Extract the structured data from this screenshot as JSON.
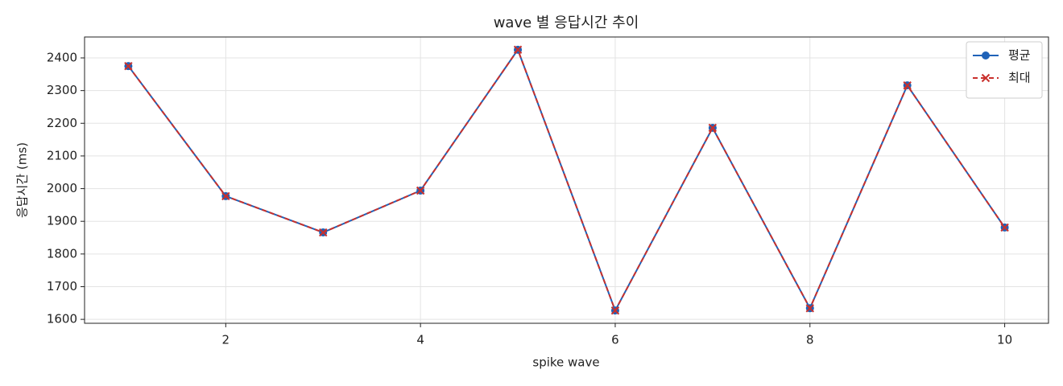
{
  "chart_data": {
    "type": "line",
    "title": "wave 별 응답시간 추이",
    "x_label": "spike wave",
    "y_label": "응답시간 (ms)",
    "x": [
      1,
      2,
      3,
      4,
      5,
      6,
      7,
      8,
      9,
      10
    ],
    "series": [
      {
        "name": "평균",
        "color": "#1f62b8",
        "marker": "o",
        "linestyle": "solid",
        "values": [
          2375,
          1977,
          1866,
          1994,
          2425,
          1627,
          2186,
          1634,
          2316,
          1881
        ]
      },
      {
        "name": "최대",
        "color": "#c9302c",
        "marker": "x",
        "linestyle": "dashed",
        "values": [
          2375,
          1977,
          1866,
          1994,
          2425,
          1627,
          2186,
          1634,
          2316,
          1881
        ]
      }
    ],
    "xlim": [
      0.55,
      10.45
    ],
    "xticks": [
      2,
      4,
      6,
      8,
      10
    ],
    "ylim": [
      1588,
      2464
    ],
    "yticks": [
      1600,
      1700,
      1800,
      1900,
      2000,
      2100,
      2200,
      2300,
      2400
    ],
    "grid": true,
    "legend": "upper right"
  }
}
